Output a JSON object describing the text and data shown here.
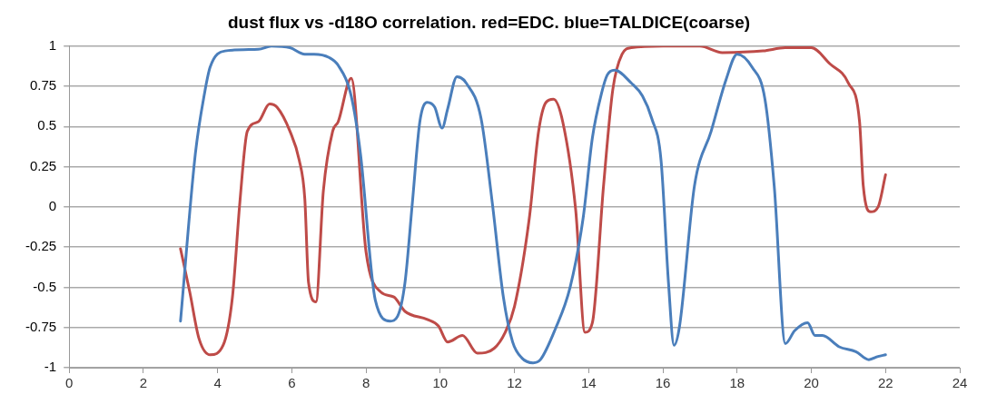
{
  "chart_data": {
    "type": "line",
    "title": "dust flux vs -d18O correlation. red=EDC. blue=TALDICE(coarse)",
    "xlim": [
      0,
      24
    ],
    "xticks": [
      0,
      2,
      4,
      6,
      8,
      10,
      12,
      14,
      16,
      18,
      20,
      22,
      24
    ],
    "ylim": [
      -1,
      1
    ],
    "yticks": [
      -1,
      -0.75,
      -0.5,
      -0.25,
      0,
      0.25,
      0.5,
      0.75,
      1
    ],
    "grid": "y",
    "marker": "none",
    "line_style": "solid",
    "series": [
      {
        "color": "#4a7ebb",
        "x": [
          3.0,
          3.4,
          3.65,
          3.8,
          4.2,
          5.1,
          5.45,
          5.95,
          6.35,
          6.6,
          7.0,
          7.25,
          7.6,
          7.85,
          8.25,
          8.65,
          8.85,
          9.05,
          9.25,
          9.45,
          9.65,
          9.85,
          10.05,
          10.2,
          10.45,
          10.7,
          11.1,
          11.4,
          11.7,
          11.95,
          12.2,
          12.5,
          12.7,
          13.1,
          13.5,
          13.85,
          14.1,
          14.35,
          14.5,
          14.7,
          15.15,
          15.45,
          15.7,
          15.95,
          16.15,
          16.3,
          16.45,
          16.85,
          17.3,
          17.7,
          18.0,
          18.4,
          18.75,
          19.0,
          19.3,
          19.55,
          19.9,
          20.1,
          20.3,
          20.75,
          21.2,
          21.55,
          21.8,
          22.0
        ],
        "values": [
          -0.71,
          0.33,
          0.71,
          0.87,
          0.97,
          0.98,
          1.0,
          0.99,
          0.95,
          0.95,
          0.93,
          0.88,
          0.69,
          0.33,
          -0.58,
          -0.71,
          -0.68,
          -0.47,
          0.03,
          0.53,
          0.65,
          0.62,
          0.49,
          0.61,
          0.81,
          0.77,
          0.55,
          0.03,
          -0.56,
          -0.84,
          -0.94,
          -0.97,
          -0.95,
          -0.76,
          -0.5,
          -0.07,
          0.43,
          0.71,
          0.82,
          0.85,
          0.77,
          0.69,
          0.55,
          0.29,
          -0.47,
          -0.86,
          -0.74,
          0.13,
          0.47,
          0.79,
          0.95,
          0.87,
          0.67,
          0.13,
          -0.85,
          -0.77,
          -0.72,
          -0.8,
          -0.8,
          -0.87,
          -0.9,
          -0.95,
          -0.93,
          -0.92
        ]
      },
      {
        "color": "#be4b48",
        "x": [
          3.0,
          3.25,
          3.5,
          3.8,
          4.15,
          4.4,
          4.6,
          4.8,
          5.1,
          5.4,
          5.6,
          5.95,
          6.2,
          6.35,
          6.45,
          6.65,
          6.85,
          7.1,
          7.25,
          7.6,
          8.0,
          8.4,
          8.75,
          9.05,
          9.65,
          9.95,
          10.2,
          10.6,
          11.0,
          11.45,
          11.75,
          12.0,
          12.4,
          12.65,
          12.85,
          13.05,
          13.3,
          13.65,
          13.9,
          14.1,
          14.4,
          14.65,
          14.9,
          15.15,
          16.0,
          17.0,
          17.6,
          18.7,
          19.3,
          20.0,
          20.5,
          21.0,
          21.3,
          21.4,
          21.6,
          21.8,
          22.0
        ],
        "values": [
          -0.26,
          -0.53,
          -0.82,
          -0.92,
          -0.86,
          -0.56,
          0.03,
          0.47,
          0.53,
          0.64,
          0.62,
          0.47,
          0.29,
          0.05,
          -0.47,
          -0.59,
          0.1,
          0.47,
          0.53,
          0.8,
          -0.28,
          -0.53,
          -0.56,
          -0.65,
          -0.7,
          -0.74,
          -0.84,
          -0.8,
          -0.91,
          -0.88,
          -0.78,
          -0.62,
          -0.07,
          0.47,
          0.65,
          0.67,
          0.53,
          -0.02,
          -0.78,
          -0.72,
          0.13,
          0.73,
          0.95,
          0.99,
          1.0,
          1.0,
          0.96,
          0.97,
          0.99,
          0.99,
          0.89,
          0.77,
          0.53,
          0.13,
          -0.03,
          0.0,
          0.2
        ]
      }
    ]
  }
}
